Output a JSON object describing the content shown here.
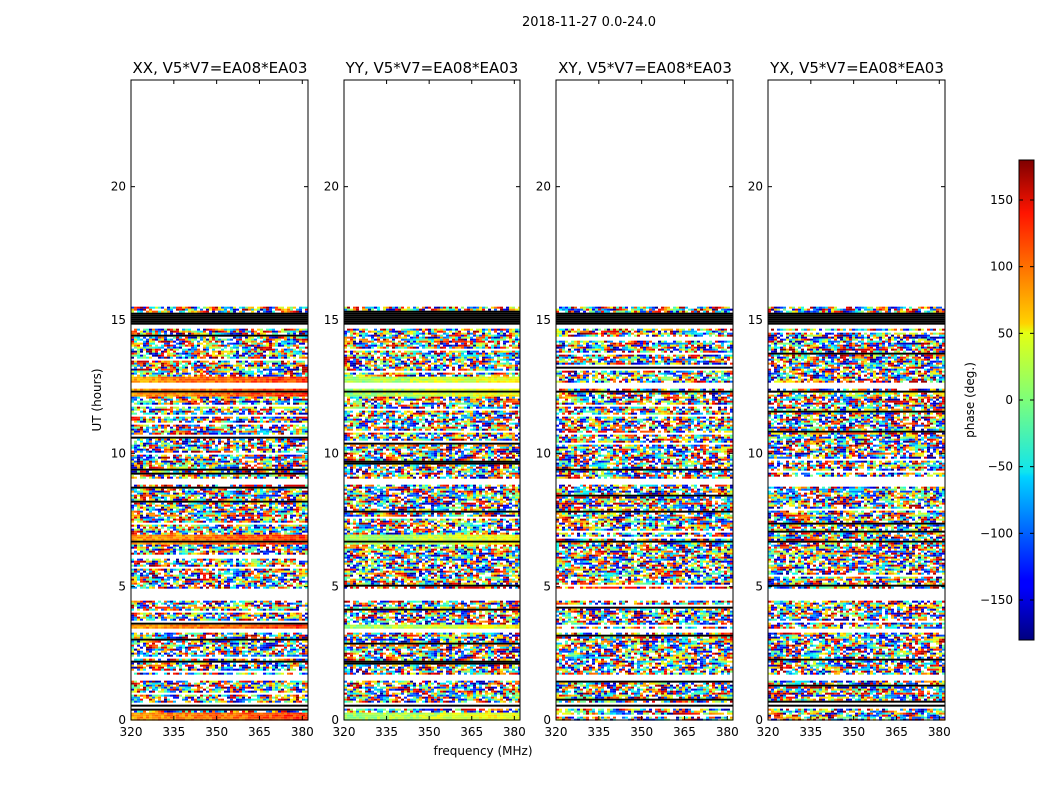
{
  "chart_data": {
    "type": "heatmap",
    "suptitle": "2018-11-27 0.0-24.0",
    "xlabel": "frequency (MHz)",
    "ylabel": "UT (hours)",
    "xlim": [
      320,
      382
    ],
    "ylim": [
      0,
      24
    ],
    "xticks": [
      "320",
      "335",
      "350",
      "365",
      "380"
    ],
    "xtick_values": [
      320,
      335,
      350,
      365,
      380
    ],
    "yticks": [
      "0",
      "5",
      "10",
      "15",
      "20"
    ],
    "ytick_values": [
      0,
      5,
      10,
      15,
      20
    ],
    "panels": [
      {
        "title": "XX, V5*V7=EA08*EA03",
        "pol": "XX"
      },
      {
        "title": "YY, V5*V7=EA08*EA03",
        "pol": "YY"
      },
      {
        "title": "XY, V5*V7=EA08*EA03",
        "pol": "XY"
      },
      {
        "title": "YX, V5*V7=EA08*EA03",
        "pol": "YX"
      }
    ],
    "colorbar": {
      "label": "phase (deg.)",
      "range": [
        -180,
        180
      ],
      "ticks": [
        "150",
        "100",
        "50",
        "0",
        "−50",
        "−100",
        "−150"
      ],
      "tick_values": [
        150,
        100,
        50,
        0,
        -50,
        -100,
        -150
      ],
      "colormap": "jet"
    },
    "data_extent_hours": [
      0,
      15.5
    ],
    "flagged_gaps_hours": [
      [
        0.5,
        0.7
      ],
      [
        1.5,
        1.75
      ],
      [
        3.3,
        3.5
      ],
      [
        4.5,
        4.95
      ],
      [
        8.85,
        9.1
      ],
      [
        12.5,
        12.7
      ],
      [
        14.7,
        14.9
      ]
    ],
    "black_rows_hours": [
      [
        14.85,
        15.35
      ],
      [
        0.55,
        0.65
      ],
      [
        6.7,
        6.8
      ],
      [
        1.65,
        1.7
      ],
      [
        12.35,
        12.4
      ]
    ],
    "calibrator_scans_hours": [
      [
        0.0,
        0.35
      ],
      [
        3.5,
        3.65
      ],
      [
        6.6,
        7.0
      ],
      [
        12.2,
        12.9
      ]
    ]
  }
}
